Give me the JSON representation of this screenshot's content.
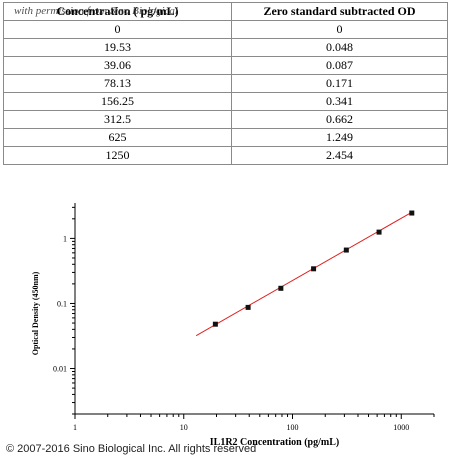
{
  "table": {
    "headers": [
      "Concentration ( pg/mL)",
      "Zero standard subtracted OD"
    ],
    "watermark": "with permission from Sino Biological",
    "rows": [
      [
        "0",
        "0"
      ],
      [
        "19.53",
        "0.048"
      ],
      [
        "39.06",
        "0.087"
      ],
      [
        "78.13",
        "0.171"
      ],
      [
        "156.25",
        "0.341"
      ],
      [
        "312.5",
        "0.662"
      ],
      [
        "625",
        "1.249"
      ],
      [
        "1250",
        "2.454"
      ]
    ]
  },
  "chart_data": {
    "type": "scatter",
    "xscale": "log",
    "yscale": "log",
    "xlim": [
      1,
      2000
    ],
    "ylim": [
      0.002,
      3.5
    ],
    "xticks": [
      1,
      10,
      100,
      1000
    ],
    "xtick_labels": [
      "1",
      "10",
      "100",
      "1000"
    ],
    "yticks": [
      0.01,
      0.1,
      1
    ],
    "ytick_labels": [
      "0.01",
      "0.1",
      "1"
    ],
    "xlabel": "IL1R2 Concentration (pg/mL)",
    "ylabel": "Optical Density (450nm)",
    "grid": false,
    "series": [
      {
        "x": [
          19.53,
          39.06,
          78.13,
          156.25,
          312.5,
          625,
          1250
        ],
        "y": [
          0.048,
          0.087,
          0.171,
          0.341,
          0.662,
          1.249,
          2.454
        ],
        "color": "#111111"
      }
    ],
    "fit_line": {
      "x": [
        13,
        1300
      ],
      "y": [
        0.032,
        2.62
      ],
      "color": "#e02020"
    }
  },
  "footer": {
    "copyright": "© 2007-2016 Sino Biological Inc. All rights reserved"
  }
}
